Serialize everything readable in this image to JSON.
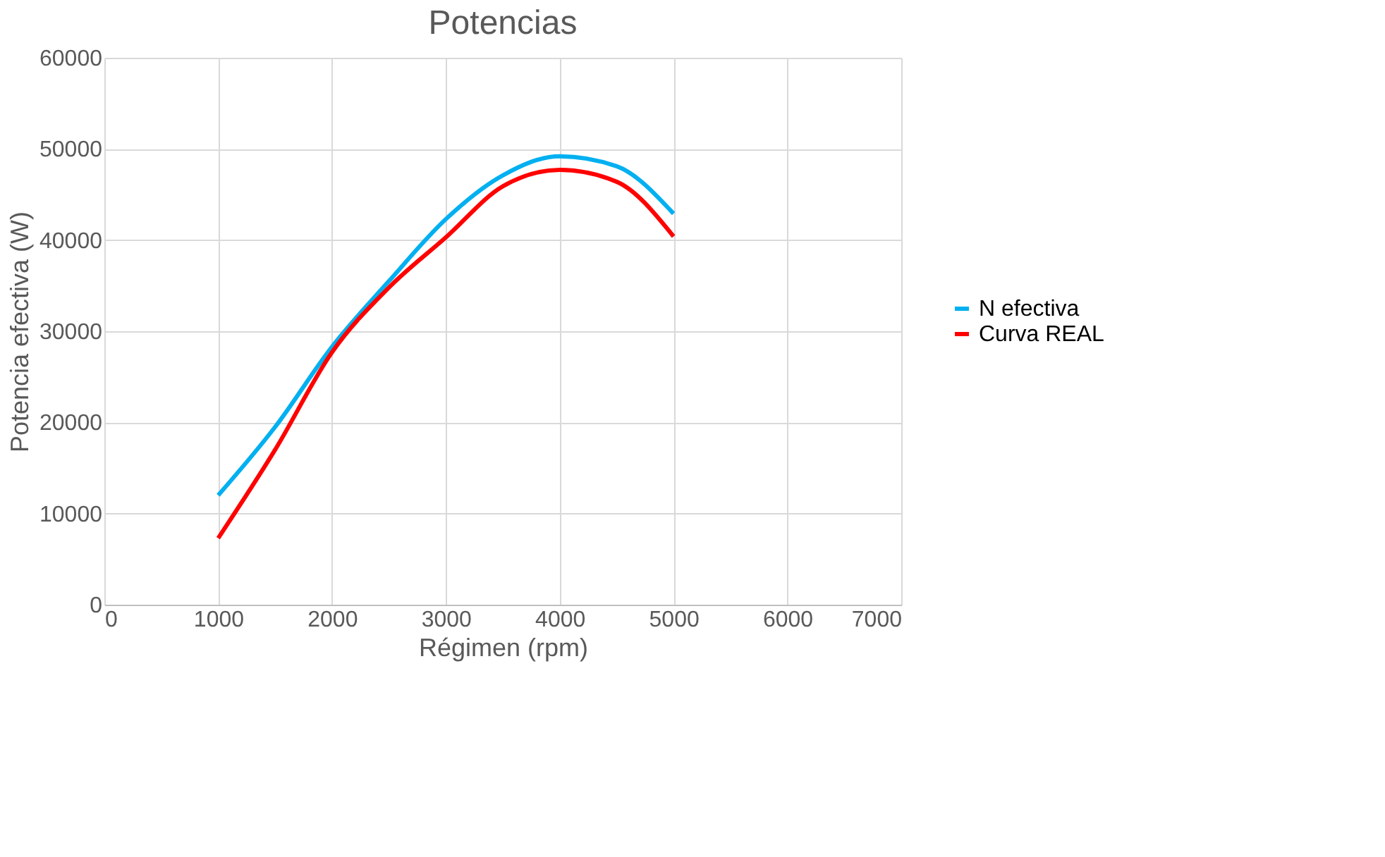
{
  "chart_data": {
    "type": "line",
    "title": "Potencias",
    "xlabel": "Régimen (rpm)",
    "ylabel": "Potencia efectiva (W)",
    "x": [
      1000,
      1500,
      2000,
      2500,
      3000,
      3500,
      4000,
      4500,
      5000
    ],
    "series": [
      {
        "name": "N efectiva",
        "color": "#00b0f0",
        "values": [
          12000,
          19500,
          28300,
          35500,
          42300,
          47100,
          49200,
          48100,
          42900
        ]
      },
      {
        "name": "Curva REAL",
        "color": "#ff0000",
        "values": [
          7300,
          17000,
          27700,
          34800,
          40300,
          45900,
          47700,
          46400,
          40400
        ]
      }
    ],
    "xlim": [
      0,
      7000
    ],
    "xticks": [
      0,
      1000,
      2000,
      3000,
      4000,
      5000,
      6000,
      7000
    ],
    "ylim": [
      0,
      60000
    ],
    "yticks": [
      0,
      10000,
      20000,
      30000,
      40000,
      50000,
      60000
    ],
    "grid": true,
    "legend": "right",
    "marker": "none",
    "line_style": "solid"
  }
}
